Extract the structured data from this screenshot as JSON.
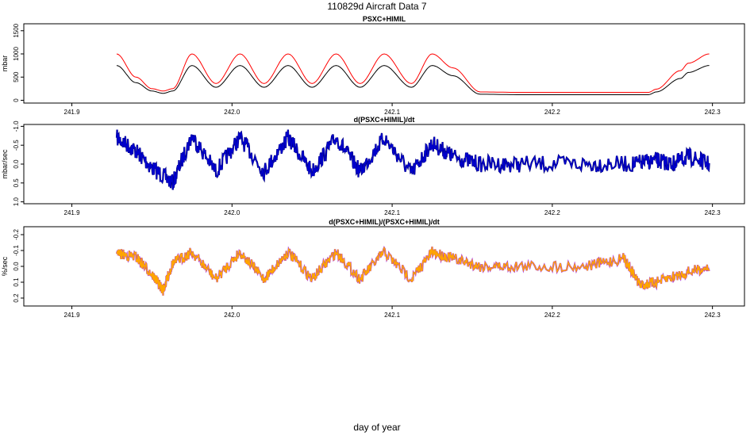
{
  "figure": {
    "title": "110829d   Aircraft Data 7",
    "xlabel": "day of year"
  },
  "colors": {
    "frame": "#000000",
    "p1_red": "#ff0000",
    "p1_black": "#000000",
    "p2_blue": "#0000cc",
    "p2_navy": "#000066",
    "p3_orange": "#ffa500",
    "p3_purple": "#a020f0"
  },
  "chart_data": [
    {
      "type": "line",
      "title": "PSXC+HIMIL",
      "xlabel": "",
      "ylabel": "mbar",
      "xlim": [
        241.87,
        242.32
      ],
      "ylim": [
        -60,
        1650
      ],
      "x_ticks": [
        "241.9",
        "242.0",
        "242.1",
        "242.2",
        "242.3"
      ],
      "y_ticks": [
        "0",
        "500",
        "1000",
        "1500"
      ],
      "series": [
        {
          "color": "red",
          "x": [
            241.928,
            241.94,
            241.95,
            241.957,
            241.963,
            241.975,
            241.99,
            242.005,
            242.02,
            242.035,
            242.05,
            242.065,
            242.08,
            242.095,
            242.112,
            242.125,
            242.138,
            242.155,
            242.18,
            242.26,
            242.265,
            242.28,
            242.285,
            242.298
          ],
          "y": [
            1000,
            500,
            250,
            200,
            250,
            1000,
            360,
            1000,
            360,
            1000,
            360,
            1000,
            360,
            1000,
            360,
            1000,
            700,
            180,
            170,
            170,
            240,
            640,
            800,
            1000
          ]
        },
        {
          "color": "black",
          "x": [
            241.928,
            241.94,
            241.95,
            241.957,
            241.963,
            241.975,
            241.99,
            242.005,
            242.02,
            242.035,
            242.05,
            242.065,
            242.08,
            242.095,
            242.112,
            242.125,
            242.138,
            242.155,
            242.18,
            242.26,
            242.265,
            242.28,
            242.285,
            242.298
          ],
          "y": [
            750,
            380,
            200,
            150,
            200,
            750,
            280,
            750,
            280,
            750,
            280,
            750,
            280,
            750,
            280,
            750,
            530,
            130,
            120,
            120,
            180,
            470,
            600,
            750
          ]
        }
      ]
    },
    {
      "type": "line",
      "title": "d(PSXC+HIMIL)/dt",
      "xlabel": "",
      "ylabel": "mbar/sec",
      "xlim": [
        241.87,
        242.32
      ],
      "ylim": [
        1.05,
        -1.05
      ],
      "x_ticks": [
        "241.9",
        "242.0",
        "242.1",
        "242.2",
        "242.3"
      ],
      "y_ticks": [
        "-1.0",
        "-0.5",
        "0.0",
        "0.5",
        "1.0"
      ],
      "series": [
        {
          "color": "blue",
          "x": [
            241.928,
            241.94,
            241.95,
            241.963,
            241.975,
            241.99,
            242.005,
            242.02,
            242.035,
            242.05,
            242.065,
            242.08,
            242.095,
            242.112,
            242.125,
            242.138,
            242.155,
            242.18,
            242.22,
            242.25,
            242.265,
            242.275,
            242.285,
            242.298
          ],
          "y": [
            -0.7,
            -0.35,
            0.1,
            0.5,
            -0.75,
            0.2,
            -0.7,
            0.2,
            -0.7,
            0.2,
            -0.7,
            0.2,
            -0.7,
            0.25,
            -0.55,
            -0.2,
            0.0,
            0.0,
            0.0,
            0.0,
            -0.1,
            0.0,
            -0.2,
            0.0
          ]
        }
      ]
    },
    {
      "type": "line",
      "title": "d(PSXC+HIMIL)/(PSXC+HIMIL)/dt",
      "xlabel": "",
      "ylabel": "%/sec",
      "xlim": [
        241.87,
        242.32
      ],
      "ylim": [
        0.25,
        -0.25
      ],
      "x_ticks": [
        "241.9",
        "242.0",
        "242.1",
        "242.2",
        "242.3"
      ],
      "y_ticks": [
        "-0.2",
        "-0.1",
        "0.0",
        "0.1",
        "0.2"
      ],
      "series": [
        {
          "color": "orange",
          "x": [
            241.928,
            241.94,
            241.95,
            241.957,
            241.963,
            241.975,
            241.99,
            242.005,
            242.02,
            242.035,
            242.05,
            242.065,
            242.08,
            242.095,
            242.112,
            242.125,
            242.138,
            242.155,
            242.18,
            242.22,
            242.245,
            242.255,
            242.265,
            242.28,
            242.298
          ],
          "y": [
            -0.08,
            -0.06,
            0.05,
            0.15,
            -0.02,
            -0.09,
            0.08,
            -0.09,
            0.08,
            -0.09,
            0.08,
            -0.09,
            0.08,
            -0.09,
            0.08,
            -0.09,
            -0.05,
            0.0,
            0.0,
            0.0,
            -0.05,
            0.12,
            0.1,
            0.05,
            0.0
          ]
        }
      ]
    }
  ]
}
